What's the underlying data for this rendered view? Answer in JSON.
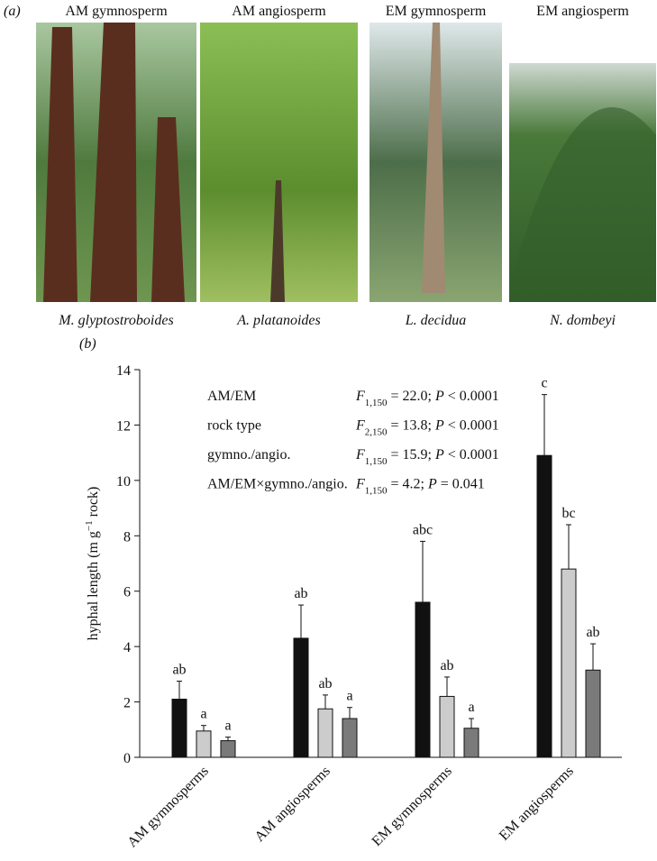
{
  "panel_a": {
    "label": "(a)",
    "photos": [
      {
        "group": "AM gymnosperm",
        "species": "M. glyptostroboides"
      },
      {
        "group": "AM angiosperm",
        "species": "A. platanoides"
      },
      {
        "group": "EM gymnosperm",
        "species": "L. decidua"
      },
      {
        "group": "EM angiosperm",
        "species": "N. dombeyi"
      }
    ]
  },
  "chart_data": {
    "type": "bar",
    "panel_label": "(b)",
    "y_label_parts": [
      "hyphal length (m g",
      "−1",
      " rock)"
    ],
    "categories": [
      "AM gymnosperms",
      "AM angiosperms",
      "EM gymnosperms",
      "EM angiosperms"
    ],
    "series": [
      {
        "color": "#111111",
        "values": [
          2.1,
          4.3,
          5.6,
          10.9
        ],
        "errors": [
          0.65,
          1.2,
          2.2,
          2.2
        ],
        "letters": [
          "ab",
          "ab",
          "abc",
          "c"
        ]
      },
      {
        "color": "#cccccc",
        "values": [
          0.95,
          1.75,
          2.2,
          6.8
        ],
        "errors": [
          0.2,
          0.5,
          0.7,
          1.6
        ],
        "letters": [
          "a",
          "ab",
          "ab",
          "bc"
        ]
      },
      {
        "color": "#7a7a7a",
        "values": [
          0.6,
          1.4,
          1.05,
          3.15
        ],
        "errors": [
          0.13,
          0.4,
          0.35,
          0.95
        ],
        "letters": [
          "a",
          "a",
          "a",
          "ab"
        ]
      }
    ],
    "ylim": [
      0,
      14
    ],
    "yticks": [
      0,
      2,
      4,
      6,
      8,
      10,
      12,
      14
    ],
    "stats": [
      {
        "term": "AM/EM",
        "parts": [
          "F",
          "1,150",
          " = 22.0; ",
          "P",
          " < 0.0001"
        ]
      },
      {
        "term": "rock type",
        "parts": [
          "F",
          "2,150",
          " = 13.8; ",
          "P",
          " < 0.0001"
        ]
      },
      {
        "term": "gymno./angio.",
        "parts": [
          "F",
          "1,150",
          " = 15.9; ",
          "P",
          " < 0.0001"
        ]
      },
      {
        "term": "AM/EM×gymno./angio.",
        "parts": [
          "F",
          "1,150",
          " = 4.2; ",
          "P",
          " = 0.041"
        ]
      }
    ]
  }
}
